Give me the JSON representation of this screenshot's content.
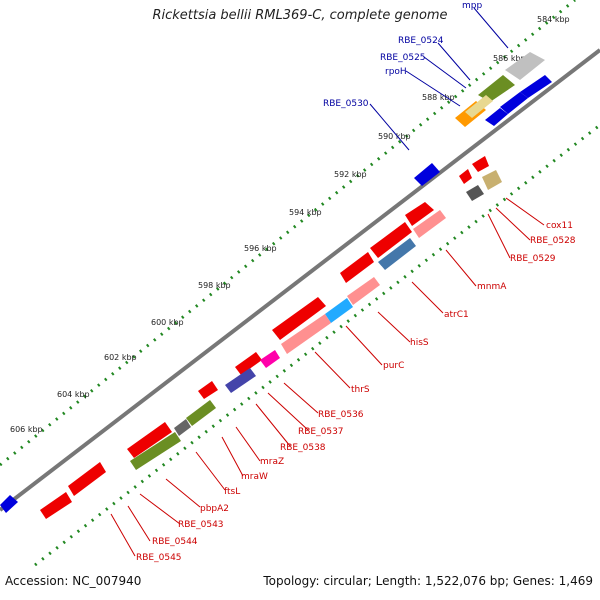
{
  "title": "Rickettsia bellii RML369-C, complete genome",
  "accession": "Accession: NC_007940",
  "summary": "Topology: circular; Length: 1,522,076 bp; Genes: 1,469",
  "ticks": [
    "584 kbp",
    "586 kbp",
    "588 kbp",
    "590 kbp",
    "592 kbp",
    "594 kbp",
    "596 kbp",
    "598 kbp",
    "600 kbp",
    "602 kbp",
    "604 kbp",
    "606 kbp"
  ],
  "labels_top": [
    "mpp",
    "RBE_0524",
    "RBE_0525",
    "rpoH",
    "RBE_0530"
  ],
  "labels_bottom": [
    "cox11",
    "RBE_0528",
    "RBE_0529",
    "mnmA",
    "atrC1",
    "hisS",
    "purC",
    "thrS",
    "RBE_0536",
    "RBE_0537",
    "RBE_0538",
    "mraZ",
    "mraW",
    "ftsL",
    "pbpA2",
    "RBE_0543",
    "RBE_0544",
    "RBE_0545"
  ],
  "colors": {
    "forward_gene": "#0000dd",
    "reverse_gene": "#ee0000",
    "backbone": "#777777",
    "ticks": "#228822",
    "label_top": "#0000a0",
    "label_bottom": "#cc0000"
  }
}
